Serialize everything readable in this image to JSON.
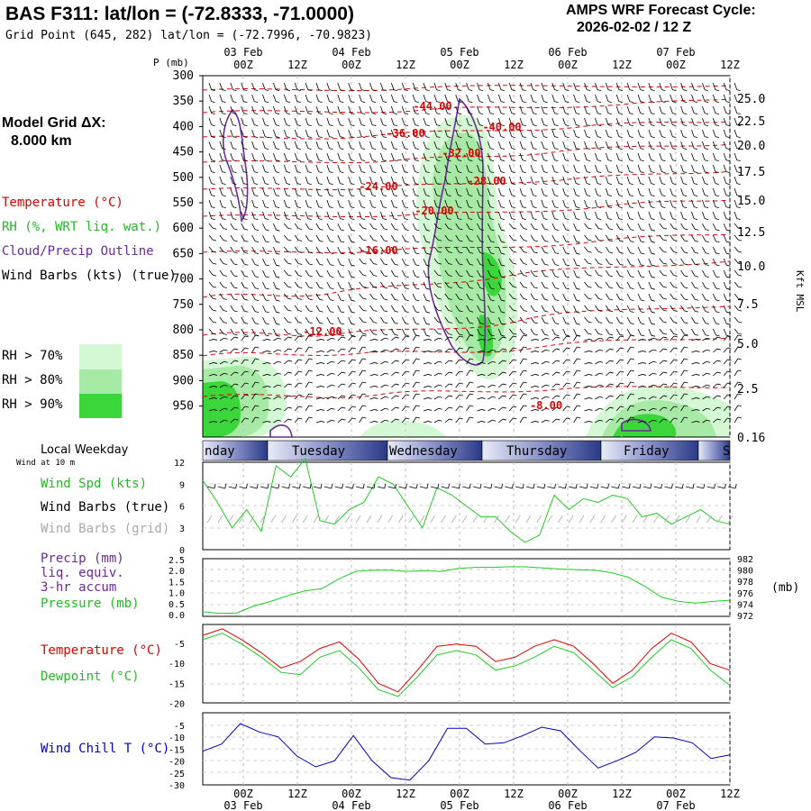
{
  "header": {
    "title": "BAS F311:  lat/lon = (-72.8333, -71.0000)",
    "grid_point": "Grid Point (645, 282) lat/lon = (-72.7996, -70.9823)",
    "forecast_title": "AMPS WRF Forecast Cycle:",
    "cycle": "2026-02-02 / 12  Z"
  },
  "left_legend": {
    "model_grid_line1": "Model Grid ΔX:",
    "model_grid_line2": "8.000 km",
    "temperature": "Temperature (°C)",
    "rh": "RH (%, WRT liq. wat.)",
    "cloud": "Cloud/Precip Outline",
    "barbs": "Wind Barbs (kts) (true)",
    "rh70": "RH > 70%",
    "rh80": "RH > 80%",
    "rh90": "RH > 90%",
    "local_weekday": "Local Weekday",
    "wind_at_10m": "Wind at 10 m",
    "wind_spd": "Wind Spd (kts)",
    "wind_barbs_true": "Wind Barbs (true)",
    "wind_barbs_grid": "Wind Barbs (grid)",
    "precip": "Precip (mm)",
    "liq_equiv": "liq. equiv.",
    "accum": "3-hr accum",
    "pressure": "Pressure (mb)",
    "temp2": "Temperature (°C)",
    "dewpoint": "Dewpoint (°C)",
    "windchill": "Wind Chill T (°C)"
  },
  "colors": {
    "temp": "#e00000",
    "rh": "#22cc22",
    "cloud": "#6a2a9a",
    "grey": "#aaaaaa",
    "rh70": "#d4f8d4",
    "rh80": "#a6eaa6",
    "rh90": "#3ad63a",
    "windchill": "#0000c0",
    "weekday_bar": "#3a4a9a"
  },
  "time_axis": {
    "top_dates": [
      "03 Feb",
      "04 Feb",
      "05 Feb",
      "06 Feb",
      "07 Feb"
    ],
    "top_hours": [
      "00Z",
      "12Z",
      "00Z",
      "12Z",
      "00Z",
      "12Z",
      "00Z",
      "12Z",
      "00Z",
      "12Z"
    ],
    "bottom_dates": [
      "03 Feb",
      "04 Feb",
      "05 Feb",
      "06 Feb",
      "07 Feb"
    ],
    "bottom_hours": [
      "00Z",
      "12Z",
      "00Z",
      "12Z",
      "00Z",
      "12Z",
      "00Z",
      "12Z",
      "00Z",
      "12Z"
    ]
  },
  "weekdays": [
    "nday",
    "Tuesday",
    "Wednesday",
    "Thursday",
    "Friday",
    "S"
  ],
  "chart_data": [
    {
      "type": "heatmap",
      "name": "cross-section",
      "ylabel": "P (mb)",
      "y2label": "Kft MSL",
      "pressure_ticks": [
        "300",
        "350",
        "400",
        "450",
        "500",
        "550",
        "600",
        "650",
        "700",
        "750",
        "800",
        "850",
        "900",
        "950"
      ],
      "kft_ticks": [
        "25.0",
        "22.5",
        "20.0",
        "17.5",
        "15.0",
        "12.5",
        "10.0",
        "7.5",
        "5.0",
        "2.5",
        "0.16"
      ],
      "temp_labels": [
        "-44.00",
        "-36.00",
        "-40.00",
        "-32.00",
        "-24.00",
        "-28.00",
        "-20.00",
        "-16.00",
        "-12.00",
        "-8.00"
      ]
    },
    {
      "type": "line",
      "name": "wind",
      "yticks": [
        "12",
        "9",
        "6",
        "3",
        "0"
      ],
      "ylim": [
        0,
        12
      ],
      "x_hours": [
        0,
        3,
        6,
        9,
        12,
        15,
        18,
        21,
        24,
        27,
        30,
        33,
        36,
        39,
        42,
        45,
        48,
        51,
        54,
        57,
        60,
        63,
        66,
        69,
        72,
        75,
        78,
        81,
        84,
        87,
        90,
        93,
        96,
        99,
        102,
        105,
        108
      ],
      "wind_spd": [
        9.5,
        6.5,
        3.0,
        5.5,
        2.5,
        11.5,
        10.0,
        12.5,
        4.0,
        3.5,
        5.5,
        6.5,
        10.0,
        9.0,
        6.0,
        3.0,
        8.5,
        7.5,
        6.0,
        4.5,
        4.5,
        2.5,
        1.0,
        2.0,
        7.5,
        5.5,
        7.0,
        6.5,
        7.5,
        7.0,
        4.5,
        5.0,
        3.5,
        4.5,
        5.5,
        4.0,
        3.5
      ]
    },
    {
      "type": "line",
      "name": "precip-pressure",
      "yticks_left": [
        "2.5",
        "2.0",
        "1.5",
        "1.0",
        "0.5",
        "0.0"
      ],
      "yticks_right": [
        "982",
        "980",
        "978",
        "976",
        "974",
        "972"
      ],
      "y2label": "(mb)",
      "ylim": [
        972,
        982
      ],
      "pressure": [
        972.8,
        972.5,
        972.6,
        973.8,
        974.6,
        975.6,
        976.4,
        976.8,
        978.5,
        979.8,
        980.0,
        980.0,
        979.8,
        979.9,
        979.8,
        980.3,
        980.5,
        980.5,
        980.6,
        980.6,
        980.4,
        980.2,
        980.1,
        980.0,
        979.6,
        978.8,
        977.2,
        975.3,
        974.6,
        974.3,
        974.6,
        974.8
      ]
    },
    {
      "type": "line",
      "name": "temperature",
      "yticks": [
        "-5",
        "-10",
        "-15",
        "-20"
      ],
      "ylim": [
        -20,
        -2
      ],
      "temperature": [
        -4.5,
        -3.0,
        -5.5,
        -8.5,
        -12.0,
        -10.5,
        -7.5,
        -6.0,
        -10.0,
        -15.5,
        -17.5,
        -12.5,
        -7.0,
        -6.5,
        -7.0,
        -10.5,
        -9.5,
        -7.0,
        -5.5,
        -7.0,
        -11.0,
        -15.5,
        -12.5,
        -7.5,
        -4.0,
        -6.0,
        -11.0,
        -12.5
      ],
      "dewpoint": [
        -5.5,
        -4.0,
        -6.5,
        -9.5,
        -13.0,
        -13.5,
        -9.5,
        -8.0,
        -12.0,
        -17.0,
        -18.5,
        -14.0,
        -9.0,
        -8.0,
        -9.0,
        -12.5,
        -11.5,
        -9.5,
        -7.0,
        -8.5,
        -12.5,
        -16.5,
        -14.0,
        -9.5,
        -5.5,
        -7.5,
        -12.5,
        -16.0
      ]
    },
    {
      "type": "line",
      "name": "windchill",
      "yticks": [
        "-5",
        "-10",
        "-15",
        "-20",
        "-25",
        "-30"
      ],
      "ylim": [
        -30,
        0
      ],
      "windchill": [
        -16.0,
        -13.0,
        -4.5,
        -8.0,
        -10.0,
        -18.0,
        -22.5,
        -20.0,
        -9.5,
        -20.0,
        -27.0,
        -28.0,
        -20.0,
        -6.5,
        -6.5,
        -13.0,
        -12.5,
        -9.5,
        -6.0,
        -7.5,
        -15.5,
        -23.0,
        -20.0,
        -16.5,
        -10.0,
        -10.5,
        -12.5,
        -19.0,
        -17.5
      ]
    }
  ]
}
